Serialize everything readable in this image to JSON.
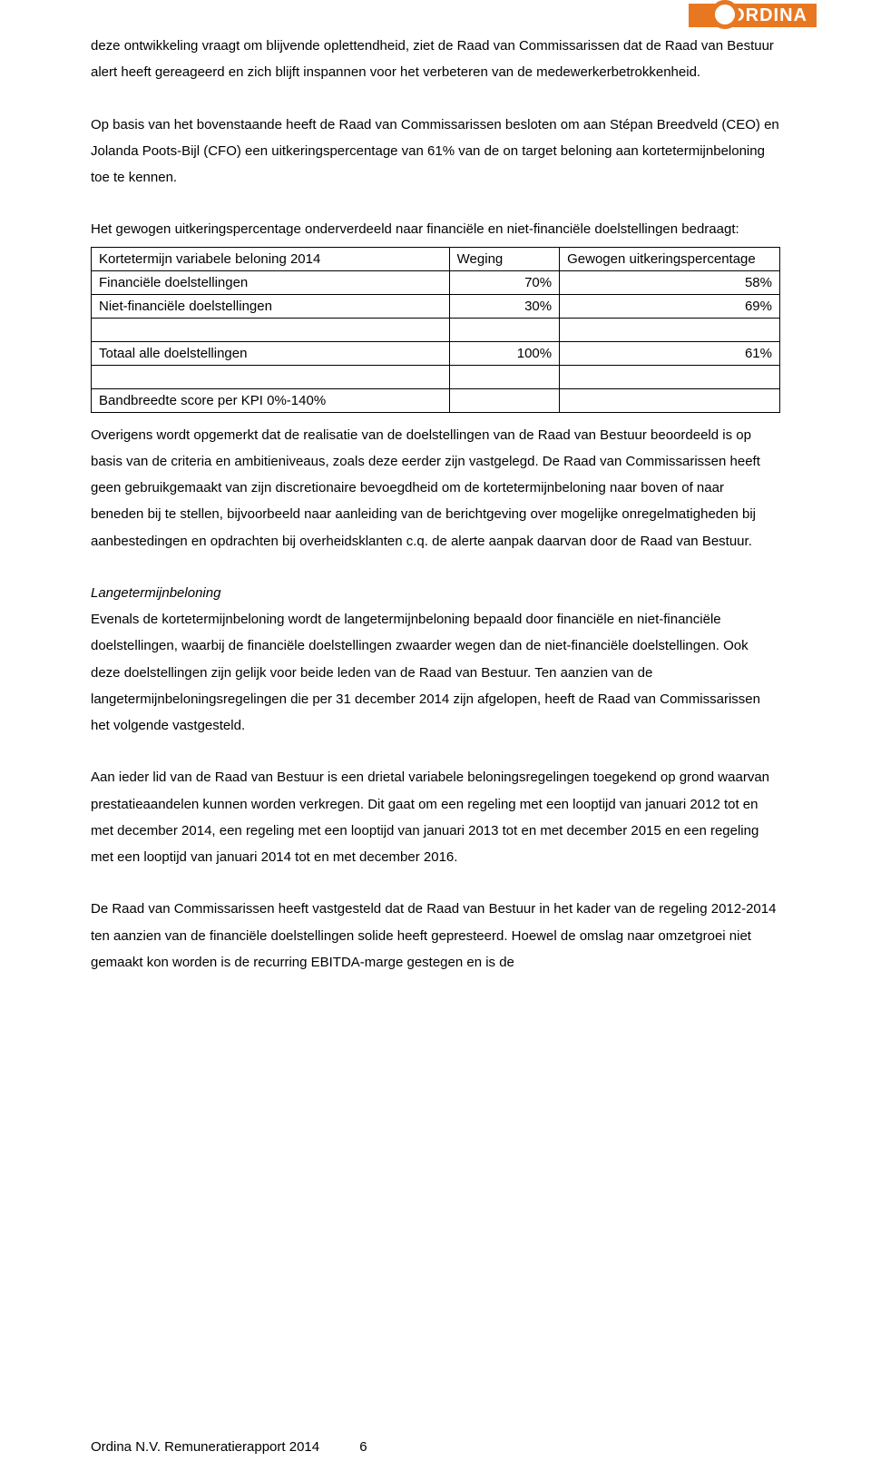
{
  "brand": {
    "name": "ORDINA",
    "bar_color": "#e87722",
    "text_color": "#ffffff"
  },
  "paragraphs": {
    "p1": "deze ontwikkeling vraagt om blijvende oplettendheid, ziet de Raad van Commissarissen dat de Raad van Bestuur alert heeft gereageerd en zich blijft inspannen voor het verbeteren van de medewerkerbetrokkenheid.",
    "p2": "Op basis van het bovenstaande heeft de Raad van Commissarissen besloten om aan Stépan Breedveld (CEO) en Jolanda Poots-Bijl (CFO) een uitkeringspercentage van 61% van de on target beloning aan kortetermijnbeloning toe te kennen.",
    "p3": "Het gewogen uitkeringspercentage onderverdeeld naar financiële en niet-financiële doelstellingen bedraagt:",
    "p4": "Overigens wordt opgemerkt dat de realisatie van de doelstellingen van de Raad van Bestuur beoordeeld is op basis van de criteria en ambitieniveaus, zoals deze eerder zijn vastgelegd. De Raad van Commissarissen heeft geen gebruikgemaakt van zijn discretionaire bevoegdheid om de kortetermijnbeloning naar boven of naar beneden bij te stellen, bijvoorbeeld naar aanleiding van de berichtgeving over mogelijke onregelmatigheden bij aanbestedingen en opdrachten bij overheidsklanten c.q. de alerte aanpak daarvan door de Raad van Bestuur.",
    "p5_title": "Langetermijnbeloning",
    "p5": "Evenals de kortetermijnbeloning wordt de langetermijnbeloning bepaald door financiële en niet-financiële doelstellingen, waarbij de financiële doelstellingen zwaarder wegen dan de niet-financiële doelstellingen. Ook deze doelstellingen zijn gelijk voor beide leden van de Raad van Bestuur. Ten aanzien van de langetermijnbeloningsregelingen die per 31 december 2014 zijn afgelopen, heeft de Raad van Commissarissen het volgende vastgesteld.",
    "p6": "Aan ieder lid van de Raad van Bestuur is een drietal variabele beloningsregelingen toegekend op grond waarvan prestatieaandelen kunnen worden verkregen. Dit gaat om een regeling met een looptijd van januari 2012 tot en met december 2014, een regeling met een looptijd van januari 2013 tot en met december 2015 en een regeling met een looptijd van januari 2014 tot en met december 2016.",
    "p7": "De Raad van Commissarissen heeft vastgesteld dat de Raad van Bestuur in het kader van de regeling 2012-2014 ten aanzien van de financiële doelstellingen solide heeft gepresteerd. Hoewel de omslag naar omzetgroei niet gemaakt kon worden is de recurring EBITDA-marge gestegen en is de"
  },
  "table": {
    "headers": {
      "c1": "Kortetermijn variabele beloning 2014",
      "c2": "Weging",
      "c3": "Gewogen uitkeringspercentage"
    },
    "rows": [
      {
        "label": "Financiële doelstellingen",
        "weight": "70%",
        "payout": "58%"
      },
      {
        "label": "Niet-financiële doelstellingen",
        "weight": "30%",
        "payout": "69%"
      }
    ],
    "total": {
      "label": "Totaal alle doelstellingen",
      "weight": "100%",
      "payout": "61%"
    },
    "bandwidth": "Bandbreedte score per KPI 0%-140%"
  },
  "footer": {
    "text": "Ordina N.V.  Remuneratierapport 2014",
    "page": "6"
  }
}
